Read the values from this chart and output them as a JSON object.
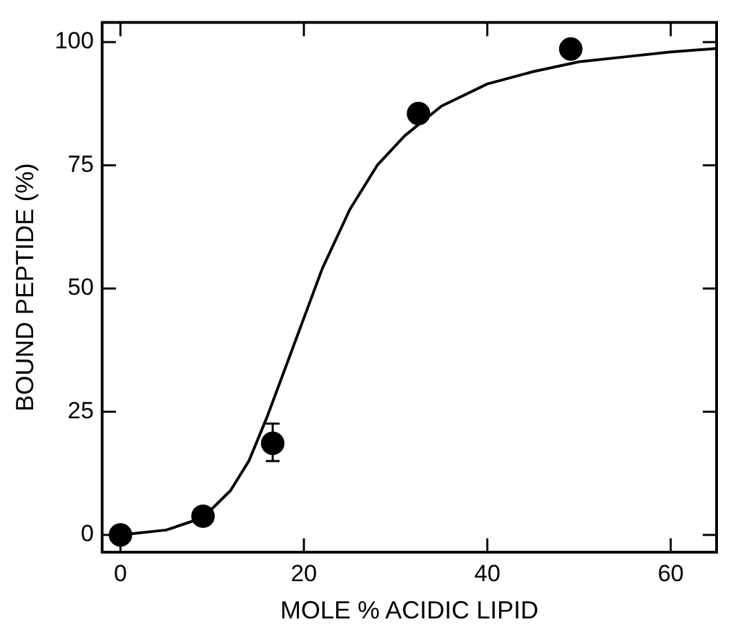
{
  "chart_data": {
    "type": "scatter",
    "xlabel": "MOLE % ACIDIC LIPID",
    "ylabel": "BOUND PEPTIDE (%)",
    "xlim": [
      -2,
      65
    ],
    "ylim": [
      -3.5,
      104
    ],
    "xticks": [
      0,
      20,
      40,
      60
    ],
    "yticks": [
      0,
      25,
      50,
      75,
      100
    ],
    "grid": false,
    "legend": false,
    "marker": "circle",
    "series": [
      {
        "color": "#000000",
        "x": [
          0,
          9,
          16.6,
          32.5,
          49.1
        ],
        "values": [
          0,
          3.8,
          18.6,
          85.5,
          98.6
        ],
        "errors": [
          null,
          null,
          [
            15,
            22.6
          ],
          null,
          null
        ]
      },
      {
        "type": "line",
        "color": "#000000",
        "marker": "none",
        "line_style": "solid",
        "x": [
          0,
          5,
          9,
          12,
          14,
          16,
          18,
          20,
          22,
          25,
          28,
          31,
          35,
          40,
          45,
          50,
          55,
          60,
          65
        ],
        "values": [
          0,
          1,
          3.5,
          9,
          15,
          24,
          34,
          44,
          54,
          66,
          75,
          81,
          87,
          91.5,
          94,
          96,
          97,
          98,
          98.7
        ]
      }
    ]
  }
}
